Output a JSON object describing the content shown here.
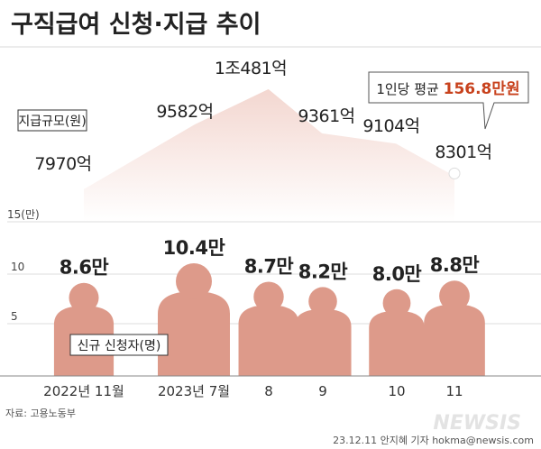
{
  "title": "구직급여 신청·지급 추이",
  "source": "자료: 고용노동부",
  "credit": "23.12.11 안지혜 기자 hokma@newsis.com",
  "watermark": "NEWSIS",
  "callout": {
    "prefix": "1인당 평균 ",
    "value": "156.8만원"
  },
  "colors": {
    "figure": "#dd9a8a",
    "band_top": "#f4dcd7",
    "line": "#ffffff",
    "accent": "#c8421d"
  },
  "chart_data": [
    {
      "type": "line",
      "legend": "지급규모(원)",
      "x": [
        "2022년 11월",
        "2023년 7월",
        "8",
        "9",
        "10",
        "11"
      ],
      "values": [
        7970,
        9582,
        10481,
        9361,
        9104,
        8301
      ],
      "labels": [
        "7970억",
        "9582억",
        "1조481억",
        "9361억",
        "9104억",
        "8301억"
      ]
    },
    {
      "type": "bar",
      "legend": "신규 신청자(명)",
      "x": [
        "2022년 11월",
        "2023년 7월",
        "8",
        "9",
        "10",
        "11"
      ],
      "values": [
        8.6,
        10.4,
        8.7,
        8.2,
        8.0,
        8.8
      ],
      "labels": [
        "8.6만",
        "10.4만",
        "8.7만",
        "8.2만",
        "8.0만",
        "8.8만"
      ],
      "yticks": [
        "15(만)",
        "10",
        "5"
      ]
    }
  ]
}
